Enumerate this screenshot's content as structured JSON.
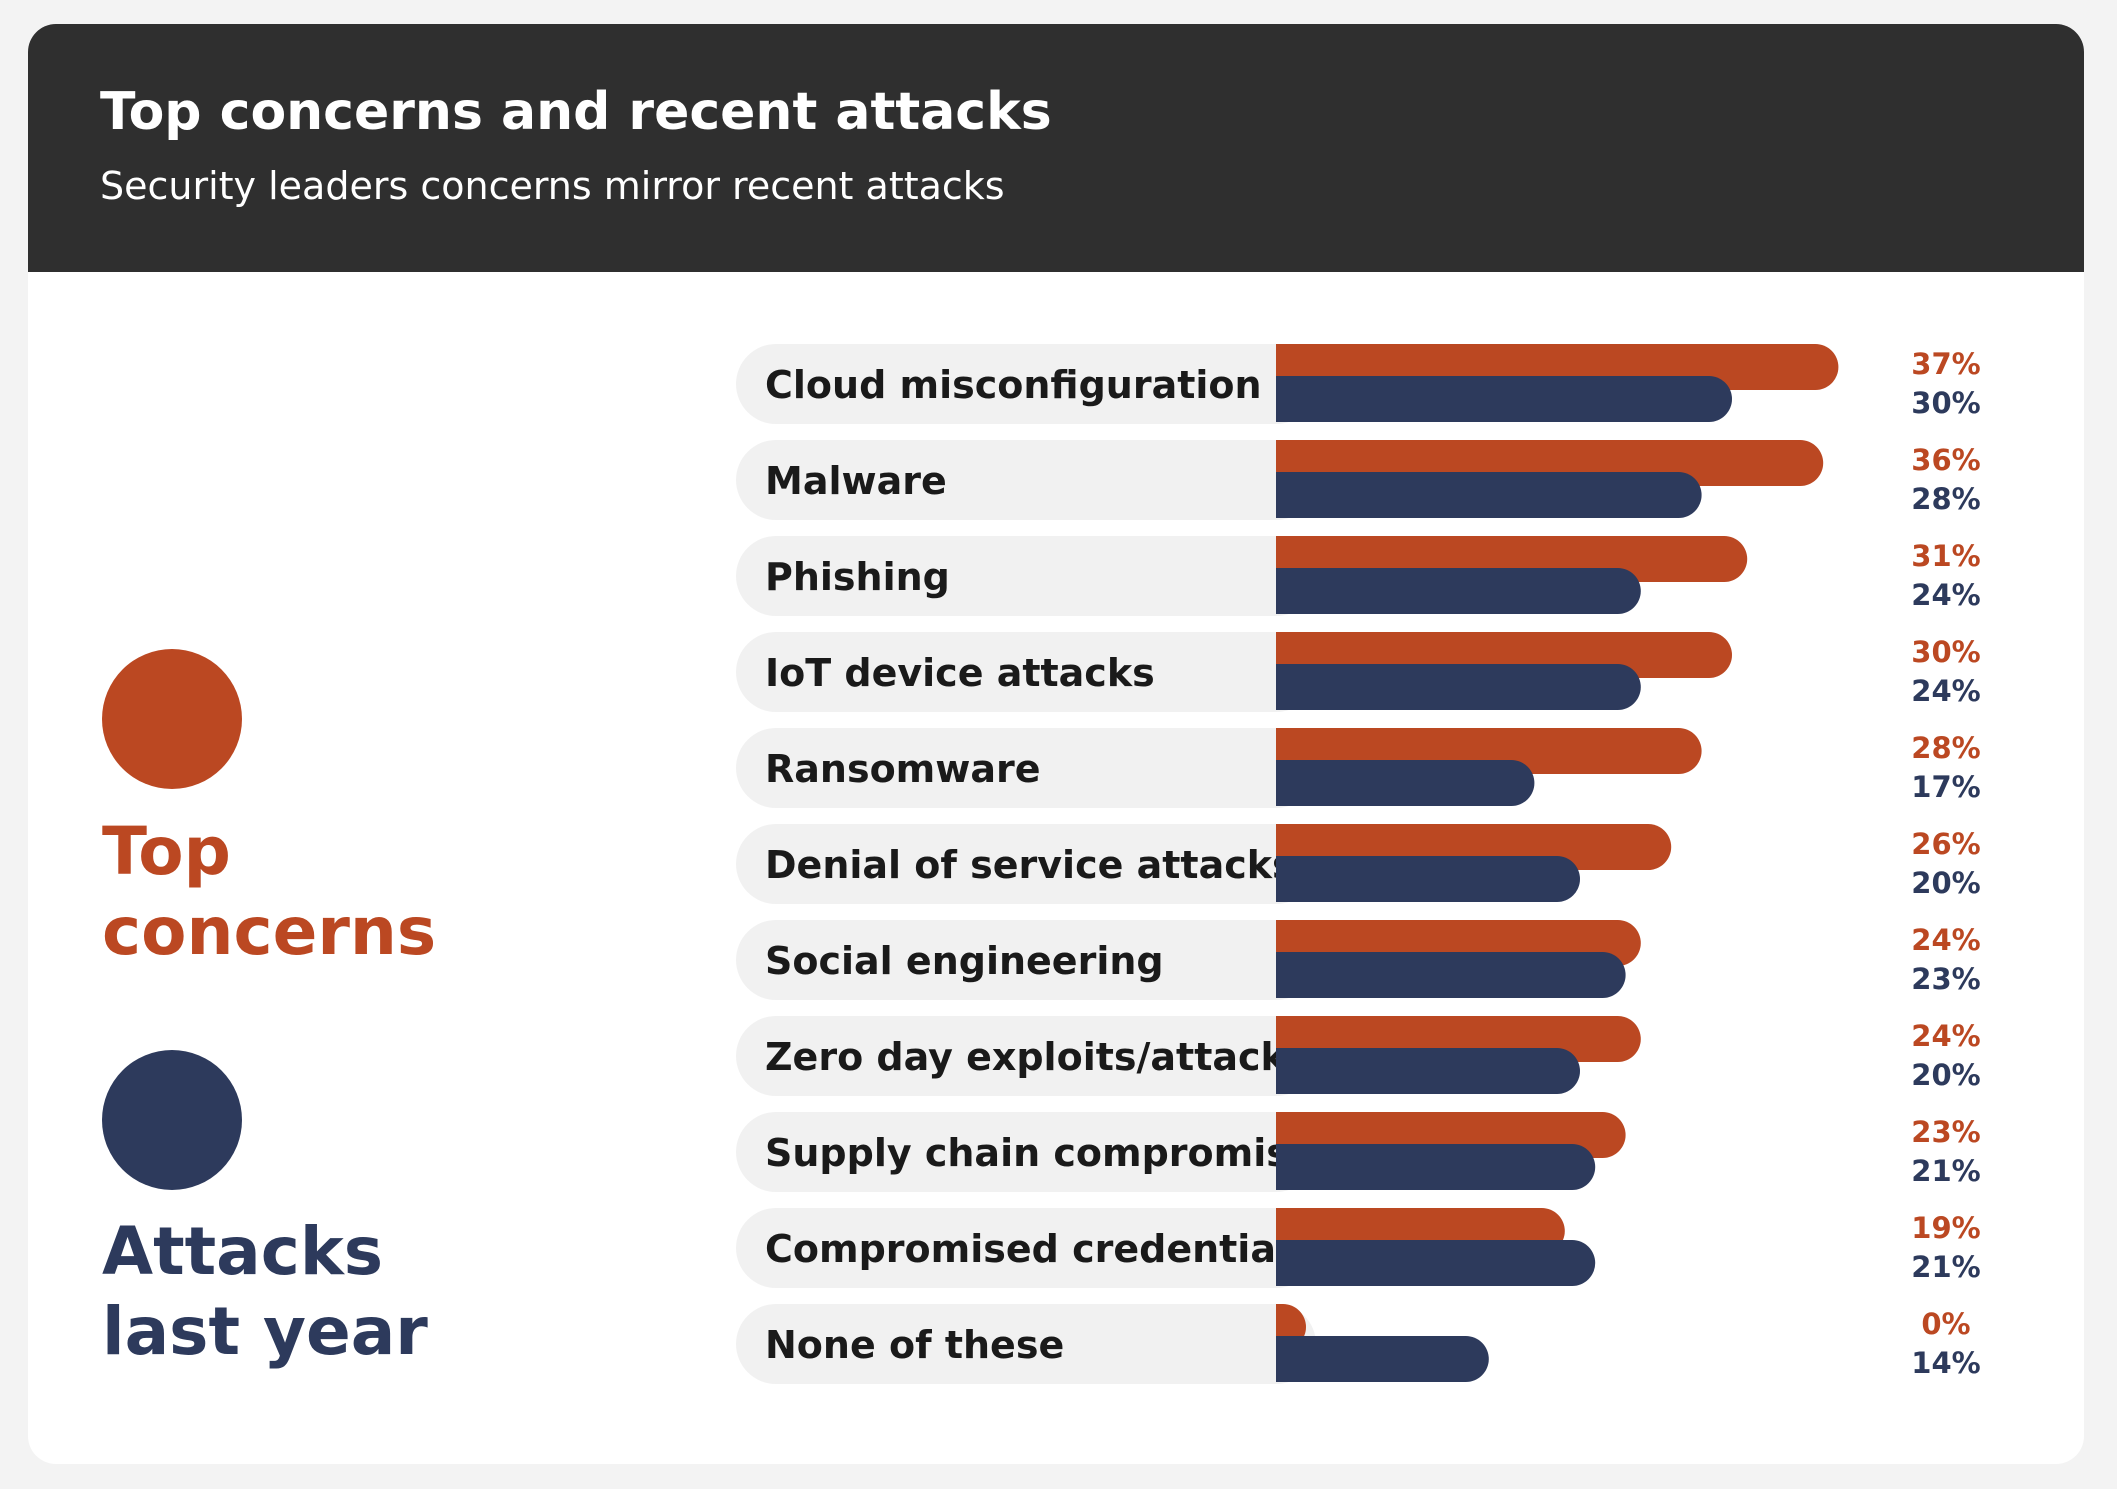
{
  "header": {
    "title": "Top concerns and recent attacks",
    "subtitle": "Security leaders concerns mirror recent attacks"
  },
  "legend": [
    {
      "line1": "Top",
      "line2": "concerns",
      "color": "#bb4822"
    },
    {
      "line1": "Attacks",
      "line2": "last year",
      "color": "#2d3a5c"
    }
  ],
  "chart_data": {
    "type": "bar",
    "orientation": "horizontal",
    "categories": [
      "Cloud misconfiguration",
      "Malware",
      "Phishing",
      "IoT device attacks",
      "Ransomware",
      "Denial of service attacks",
      "Social engineering",
      "Zero day exploits/attacks",
      "Supply chain compromise",
      "Compromised credentials",
      "None of these"
    ],
    "series": [
      {
        "name": "Top concerns",
        "color": "#bb4822",
        "values": [
          37,
          36,
          31,
          30,
          28,
          26,
          24,
          24,
          23,
          19,
          0
        ],
        "labels": [
          "37%",
          "36%",
          "31%",
          "30%",
          "28%",
          "26%",
          "24%",
          "24%",
          "23%",
          "19%",
          "0%"
        ]
      },
      {
        "name": "Attacks last year",
        "color": "#2d3a5c",
        "values": [
          30,
          28,
          24,
          24,
          17,
          20,
          23,
          20,
          21,
          21,
          14
        ],
        "labels": [
          "30%",
          "28%",
          "24%",
          "24%",
          "17%",
          "20%",
          "23%",
          "20%",
          "21%",
          "21%",
          "14%"
        ]
      }
    ],
    "unit": "%",
    "legend_position": "left",
    "grid": false
  }
}
